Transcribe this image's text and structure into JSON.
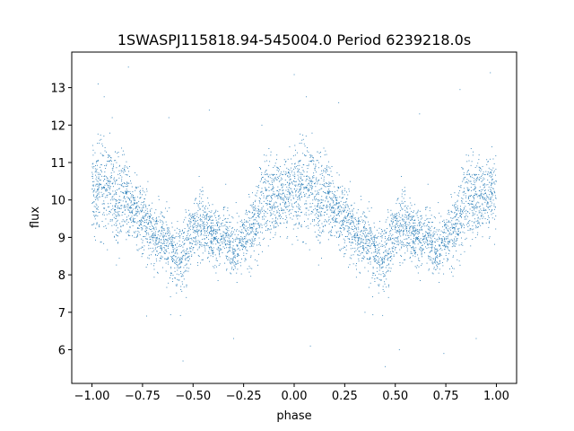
{
  "chart_data": {
    "type": "scatter",
    "title": "1SWASPJ115818.94-545004.0 Period 6239218.0s",
    "xlabel": "phase",
    "ylabel": "flux",
    "xlim": [
      -1.1,
      1.1
    ],
    "ylim": [
      5.1,
      13.95
    ],
    "x_ticks": [
      -1.0,
      -0.75,
      -0.5,
      -0.25,
      0.0,
      0.25,
      0.5,
      0.75,
      1.0
    ],
    "x_tick_labels": [
      "−1.00",
      "−0.75",
      "−0.50",
      "−0.25",
      "0.00",
      "0.25",
      "0.50",
      "0.75",
      "1.00"
    ],
    "y_ticks": [
      6,
      7,
      8,
      9,
      10,
      11,
      12,
      13
    ],
    "y_tick_labels": [
      "6",
      "7",
      "8",
      "9",
      "10",
      "11",
      "12",
      "13"
    ],
    "grid": false,
    "marker_color": "#1f77b4",
    "series": [
      {
        "profile_phase": [
          0.0,
          0.05,
          0.08,
          0.12,
          0.16,
          0.2,
          0.25,
          0.3,
          0.35,
          0.4,
          0.43,
          0.47,
          0.5,
          0.55,
          0.6,
          0.65,
          0.7,
          0.75,
          0.8,
          0.85,
          0.9,
          0.95,
          1.0
        ],
        "profile_flux": [
          10.2,
          10.5,
          10.3,
          10.0,
          10.2,
          9.8,
          9.5,
          9.1,
          9.0,
          8.6,
          8.4,
          8.8,
          9.2,
          9.3,
          9.0,
          9.2,
          8.6,
          8.9,
          9.3,
          9.9,
          10.0,
          10.2,
          10.2
        ],
        "profile_spread": [
          0.9,
          1.0,
          1.0,
          0.9,
          0.8,
          0.7,
          0.7,
          0.6,
          0.6,
          0.7,
          0.7,
          0.7,
          0.7,
          0.7,
          0.6,
          0.6,
          0.6,
          0.6,
          0.7,
          0.8,
          0.8,
          0.8,
          0.9
        ],
        "outliers": [
          [
            -0.97,
            13.1
          ],
          [
            -0.9,
            12.2
          ],
          [
            -0.82,
            13.55
          ],
          [
            -0.55,
            5.7
          ],
          [
            -0.42,
            12.4
          ],
          [
            -0.3,
            6.3
          ],
          [
            0.0,
            13.35
          ],
          [
            0.22,
            12.6
          ],
          [
            0.45,
            5.55
          ],
          [
            0.52,
            6.0
          ],
          [
            0.82,
            12.95
          ],
          [
            0.97,
            13.4
          ],
          [
            0.74,
            5.9
          ],
          [
            -0.73,
            6.9
          ],
          [
            0.35,
            7.0
          ],
          [
            -0.16,
            12.0
          ],
          [
            0.08,
            6.1
          ],
          [
            -0.62,
            12.2
          ],
          [
            0.62,
            12.3
          ],
          [
            0.9,
            6.3
          ]
        ]
      }
    ]
  }
}
